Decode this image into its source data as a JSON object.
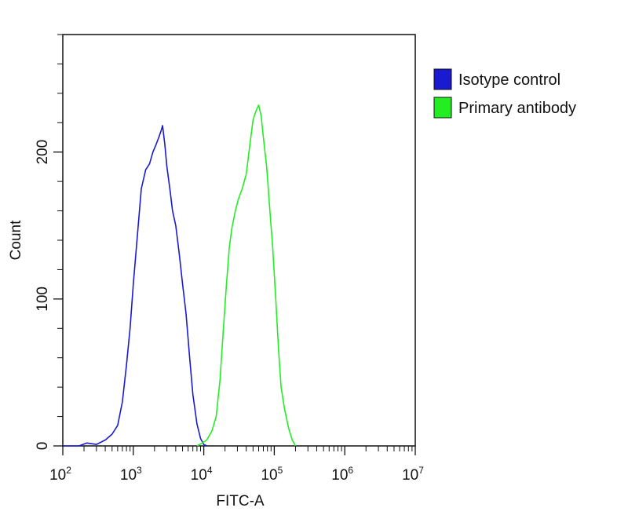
{
  "chart_data": {
    "type": "area",
    "xlabel": "FITC-A",
    "ylabel": "Count",
    "xscale": "log",
    "xlim": [
      100,
      10000000
    ],
    "ylim": [
      0,
      280
    ],
    "x_ticks": [
      {
        "base": "10",
        "exp": "2",
        "value": 100
      },
      {
        "base": "10",
        "exp": "3",
        "value": 1000
      },
      {
        "base": "10",
        "exp": "4",
        "value": 10000
      },
      {
        "base": "10",
        "exp": "5",
        "value": 100000
      },
      {
        "base": "10",
        "exp": "6",
        "value": 1000000
      },
      {
        "base": "10",
        "exp": "7",
        "value": 10000000
      }
    ],
    "y_ticks": [
      "0",
      "100",
      "200"
    ],
    "y_tick_values": [
      0,
      100,
      200
    ],
    "legend_position": "right",
    "grid": false,
    "series": [
      {
        "name": "Isotype control",
        "color": "#1a1ad0",
        "points": [
          [
            100,
            0
          ],
          [
            170,
            0
          ],
          [
            220,
            2
          ],
          [
            300,
            1
          ],
          [
            400,
            4
          ],
          [
            500,
            8
          ],
          [
            600,
            14
          ],
          [
            700,
            30
          ],
          [
            800,
            55
          ],
          [
            900,
            80
          ],
          [
            1000,
            110
          ],
          [
            1150,
            145
          ],
          [
            1300,
            175
          ],
          [
            1500,
            188
          ],
          [
            1700,
            192
          ],
          [
            1900,
            200
          ],
          [
            2100,
            205
          ],
          [
            2300,
            210
          ],
          [
            2500,
            215
          ],
          [
            2600,
            218
          ],
          [
            2800,
            205
          ],
          [
            3000,
            190
          ],
          [
            3300,
            175
          ],
          [
            3600,
            160
          ],
          [
            4000,
            150
          ],
          [
            4500,
            130
          ],
          [
            5000,
            110
          ],
          [
            5600,
            90
          ],
          [
            6300,
            60
          ],
          [
            7000,
            35
          ],
          [
            8000,
            15
          ],
          [
            9000,
            5
          ],
          [
            10000,
            1
          ],
          [
            11000,
            0
          ]
        ]
      },
      {
        "name": "Primary antibody",
        "color": "#22ee22",
        "points": [
          [
            8000,
            0
          ],
          [
            9500,
            2
          ],
          [
            11000,
            4
          ],
          [
            13000,
            10
          ],
          [
            15000,
            20
          ],
          [
            17000,
            45
          ],
          [
            19000,
            80
          ],
          [
            21000,
            110
          ],
          [
            23000,
            135
          ],
          [
            25000,
            148
          ],
          [
            28000,
            160
          ],
          [
            31000,
            168
          ],
          [
            35000,
            175
          ],
          [
            40000,
            185
          ],
          [
            45000,
            205
          ],
          [
            50000,
            222
          ],
          [
            55000,
            228
          ],
          [
            60000,
            232
          ],
          [
            65000,
            225
          ],
          [
            70000,
            210
          ],
          [
            78000,
            190
          ],
          [
            85000,
            165
          ],
          [
            95000,
            135
          ],
          [
            105000,
            100
          ],
          [
            115000,
            65
          ],
          [
            125000,
            40
          ],
          [
            140000,
            25
          ],
          [
            160000,
            12
          ],
          [
            180000,
            4
          ],
          [
            200000,
            0
          ]
        ]
      }
    ]
  }
}
